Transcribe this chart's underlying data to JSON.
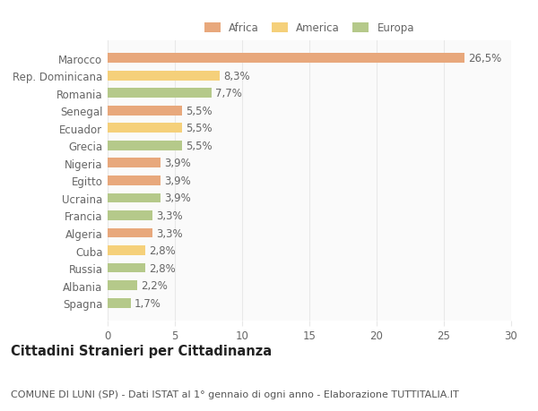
{
  "categories": [
    "Spagna",
    "Albania",
    "Russia",
    "Cuba",
    "Algeria",
    "Francia",
    "Ucraina",
    "Egitto",
    "Nigeria",
    "Grecia",
    "Ecuador",
    "Senegal",
    "Romania",
    "Rep. Dominicana",
    "Marocco"
  ],
  "values": [
    1.7,
    2.2,
    2.8,
    2.8,
    3.3,
    3.3,
    3.9,
    3.9,
    3.9,
    5.5,
    5.5,
    5.5,
    7.7,
    8.3,
    26.5
  ],
  "colors": [
    "#b5c98a",
    "#b5c98a",
    "#b5c98a",
    "#f5d07a",
    "#e8a87c",
    "#b5c98a",
    "#b5c98a",
    "#e8a87c",
    "#e8a87c",
    "#b5c98a",
    "#f5d07a",
    "#e8a87c",
    "#b5c98a",
    "#f5d07a",
    "#e8a87c"
  ],
  "legend_labels": [
    "Africa",
    "America",
    "Europa"
  ],
  "legend_colors": [
    "#e8a87c",
    "#f5d07a",
    "#b5c98a"
  ],
  "title": "Cittadini Stranieri per Cittadinanza",
  "subtitle": "COMUNE DI LUNI (SP) - Dati ISTAT al 1° gennaio di ogni anno - Elaborazione TUTTITALIA.IT",
  "xlim": [
    0,
    30
  ],
  "xticks": [
    0,
    5,
    10,
    15,
    20,
    25,
    30
  ],
  "bar_height": 0.55,
  "background_color": "#ffffff",
  "plot_bg_color": "#fafafa",
  "grid_color": "#e8e8e8",
  "text_color": "#666666",
  "label_fontsize": 8.5,
  "tick_fontsize": 8.5,
  "title_fontsize": 10.5,
  "subtitle_fontsize": 8.0
}
